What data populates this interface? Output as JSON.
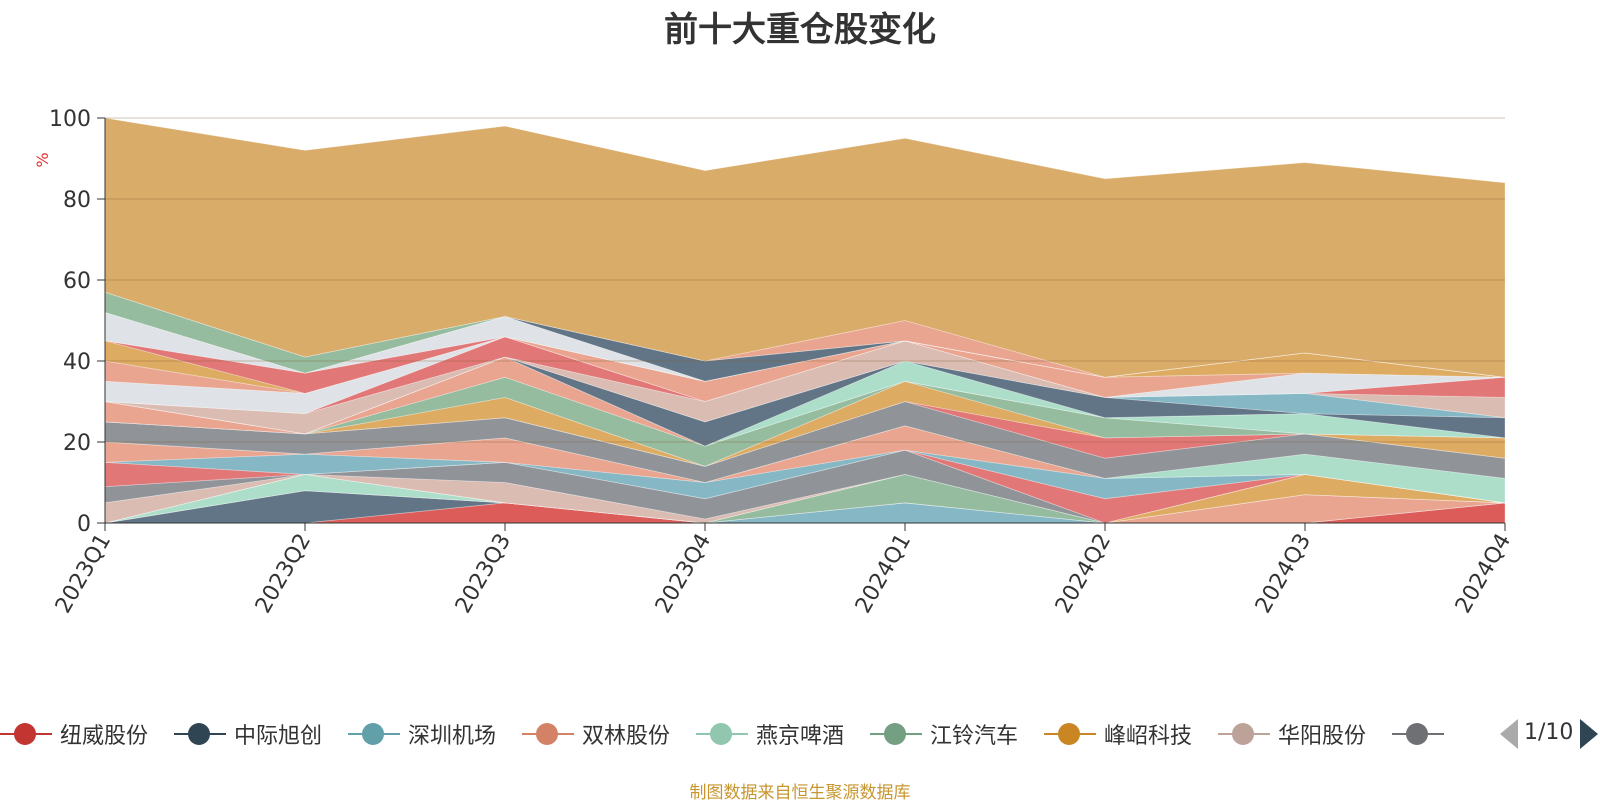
{
  "chart_data": {
    "type": "area",
    "stacked": true,
    "title": "前十大重仓股变化",
    "ylabel": "%",
    "ylim": [
      0,
      100
    ],
    "yticks": [
      0,
      20,
      40,
      60,
      80,
      100
    ],
    "grid": true,
    "categories": [
      "2023Q1",
      "2023Q2",
      "2023Q3",
      "2023Q4",
      "2024Q1",
      "2024Q2",
      "2024Q3",
      "2024Q4"
    ],
    "series": [
      {
        "name": "纽威股份",
        "color": "#d9534f",
        "values": [
          0,
          0,
          5,
          0,
          0,
          0,
          0,
          5
        ]
      },
      {
        "name": "中际旭创",
        "color": "#5a6e7f",
        "values": [
          0,
          8,
          0,
          0,
          0,
          0,
          0,
          0
        ]
      },
      {
        "name": "深圳机场",
        "color": "#7fb3c2",
        "values": [
          0,
          0,
          0,
          0,
          5,
          0,
          0,
          0
        ]
      },
      {
        "name": "双林股份",
        "color": "#e8a08a",
        "values": [
          0,
          0,
          0,
          0,
          0,
          0,
          7,
          0
        ]
      },
      {
        "name": "燕京啤酒",
        "color": "#a9dcc7",
        "values": [
          0,
          4,
          0,
          0,
          0,
          0,
          0,
          0
        ]
      },
      {
        "name": "江铃汽车",
        "color": "#8fb89a",
        "values": [
          0,
          0,
          0,
          0,
          7,
          0,
          0,
          0
        ]
      },
      {
        "name": "峰岹科技",
        "color": "#dca65a",
        "values": [
          0,
          0,
          0,
          0,
          0,
          0,
          5,
          0
        ]
      },
      {
        "name": "华阳股份",
        "color": "#d9b8ae",
        "values": [
          5,
          0,
          5,
          1,
          0,
          0,
          0,
          0
        ]
      },
      {
        "name": "",
        "color": "#8a8e94",
        "values": [
          4,
          0,
          5,
          5,
          6,
          0,
          0,
          0
        ]
      },
      {
        "name": "",
        "color": "#e07070",
        "values": [
          6,
          0,
          0,
          0,
          0,
          6,
          0,
          0
        ]
      },
      {
        "name": "",
        "color": "#7fb3c2",
        "values": [
          0,
          5,
          0,
          4,
          0,
          5,
          0,
          0
        ]
      },
      {
        "name": "",
        "color": "#e8a08a",
        "values": [
          5,
          0,
          6,
          0,
          6,
          0,
          0,
          0
        ]
      },
      {
        "name": "",
        "color": "#a9dcc7",
        "values": [
          0,
          0,
          0,
          0,
          0,
          0,
          5,
          6
        ]
      },
      {
        "name": "",
        "color": "#8a8e94",
        "values": [
          5,
          5,
          5,
          4,
          6,
          5,
          5,
          5
        ]
      },
      {
        "name": "",
        "color": "#e07070",
        "values": [
          0,
          0,
          0,
          0,
          0,
          5,
          0,
          0
        ]
      },
      {
        "name": "",
        "color": "#dca65a",
        "values": [
          0,
          0,
          5,
          0,
          5,
          0,
          0,
          5
        ]
      },
      {
        "name": "",
        "color": "#8fb89a",
        "values": [
          0,
          0,
          5,
          5,
          0,
          5,
          0,
          0
        ]
      },
      {
        "name": "",
        "color": "#e8a08a",
        "values": [
          5,
          0,
          5,
          0,
          0,
          0,
          0,
          0
        ]
      },
      {
        "name": "",
        "color": "#a9dcc7",
        "values": [
          0,
          0,
          0,
          0,
          5,
          0,
          5,
          0
        ]
      },
      {
        "name": "",
        "color": "#5a6e7f",
        "values": [
          0,
          0,
          0,
          6,
          0,
          5,
          0,
          5
        ]
      },
      {
        "name": "",
        "color": "#7fb3c2",
        "values": [
          0,
          0,
          0,
          0,
          0,
          0,
          5,
          0
        ]
      },
      {
        "name": "",
        "color": "#d9b8ae",
        "values": [
          0,
          5,
          0,
          5,
          5,
          0,
          0,
          5
        ]
      },
      {
        "name": "",
        "color": "#e07070",
        "values": [
          0,
          0,
          5,
          0,
          0,
          0,
          0,
          5
        ]
      },
      {
        "name": "",
        "color": "#dde1e6",
        "values": [
          5,
          5,
          0,
          0,
          0,
          0,
          5,
          0
        ]
      },
      {
        "name": "",
        "color": "#e8a08a",
        "values": [
          5,
          0,
          0,
          5,
          0,
          5,
          0,
          0
        ]
      },
      {
        "name": "",
        "color": "#dca65a",
        "values": [
          5,
          0,
          0,
          0,
          0,
          0,
          5,
          0
        ]
      },
      {
        "name": "",
        "color": "#e07070",
        "values": [
          0,
          5,
          0,
          0,
          0,
          0,
          0,
          0
        ]
      },
      {
        "name": "",
        "color": "#dde1e6",
        "values": [
          7,
          0,
          5,
          0,
          0,
          0,
          0,
          0
        ]
      },
      {
        "name": "",
        "color": "#5a6e7f",
        "values": [
          0,
          0,
          0,
          5,
          0,
          0,
          0,
          0
        ]
      },
      {
        "name": "",
        "color": "#8fb89a",
        "values": [
          5,
          4,
          0,
          0,
          0,
          0,
          0,
          0
        ]
      },
      {
        "name": "",
        "color": "#e8a08a",
        "values": [
          0,
          0,
          0,
          0,
          5,
          0,
          0,
          0
        ]
      },
      {
        "name": "",
        "color": "#d8a862",
        "values": [
          48,
          51,
          47,
          47,
          45,
          49,
          47,
          48
        ]
      }
    ]
  },
  "legend": {
    "items": [
      {
        "name": "纽威股份",
        "color": "#c23531"
      },
      {
        "name": "中际旭创",
        "color": "#2f4554"
      },
      {
        "name": "深圳机场",
        "color": "#61a0a8"
      },
      {
        "name": "双林股份",
        "color": "#d48265"
      },
      {
        "name": "燕京啤酒",
        "color": "#91c7ae"
      },
      {
        "name": "江铃汽车",
        "color": "#749f83"
      },
      {
        "name": "峰岹科技",
        "color": "#ca8622"
      },
      {
        "name": "华阳股份",
        "color": "#bda29a"
      },
      {
        "name": "",
        "color": "#6e7074"
      }
    ],
    "page": "1/10"
  },
  "source": "制图数据来自恒生聚源数据库"
}
